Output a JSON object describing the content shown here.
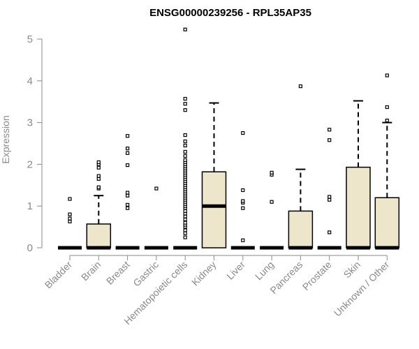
{
  "chart_data": {
    "type": "box",
    "title": "ENSG00000239256 - RPL35AP35",
    "xlabel": "",
    "ylabel": "Expression",
    "ylim": [
      0,
      5.2
    ],
    "yticks": [
      0,
      1,
      2,
      3,
      4,
      5
    ],
    "grid": false,
    "legend": "none",
    "box_fill": "#ede6cb",
    "box_stroke": "#000000",
    "categories": [
      "Bladder",
      "Brain",
      "Breast",
      "Gastric",
      "Hematopoietic cells",
      "Kidney",
      "Liver",
      "Lung",
      "Pancreas",
      "Prostate",
      "Skin",
      "Unknown / Other"
    ],
    "boxes": [
      {
        "category": "Bladder",
        "q1": 0,
        "median": 0,
        "q3": 0,
        "whisker_low": 0,
        "whisker_high": 0,
        "outliers": [
          0.63,
          0.7,
          0.8,
          1.17
        ]
      },
      {
        "category": "Brain",
        "q1": 0,
        "median": 0,
        "q3": 0.57,
        "whisker_low": 0,
        "whisker_high": 1.25,
        "outliers": [
          1.42,
          1.45,
          1.65,
          1.72,
          1.92,
          2.0,
          2.05
        ]
      },
      {
        "category": "Breast",
        "q1": 0,
        "median": 0,
        "q3": 0,
        "whisker_low": 0,
        "whisker_high": 0,
        "outliers": [
          0.95,
          1.03,
          1.25,
          1.32,
          1.98,
          2.27,
          2.38,
          2.68
        ]
      },
      {
        "category": "Gastric",
        "q1": 0,
        "median": 0,
        "q3": 0,
        "whisker_low": 0,
        "whisker_high": 0,
        "outliers": [
          1.42
        ]
      },
      {
        "category": "Hematopoietic cells",
        "q1": 0,
        "median": 0,
        "q3": 0,
        "whisker_low": 0,
        "whisker_high": 0,
        "outliers": [
          0.25,
          0.35,
          0.42,
          0.5,
          0.55,
          0.6,
          0.68,
          0.75,
          0.82,
          0.88,
          0.95,
          1.0,
          1.05,
          1.1,
          1.15,
          1.2,
          1.25,
          1.3,
          1.35,
          1.4,
          1.45,
          1.5,
          1.55,
          1.6,
          1.65,
          1.7,
          1.75,
          1.8,
          1.85,
          1.9,
          1.95,
          2.0,
          2.05,
          2.1,
          2.2,
          2.3,
          2.45,
          2.55,
          2.7,
          3.3,
          3.45,
          3.57,
          5.23
        ]
      },
      {
        "category": "Kidney",
        "q1": 0,
        "median": 1.0,
        "q3": 1.82,
        "whisker_low": 0,
        "whisker_high": 3.47,
        "outliers": []
      },
      {
        "category": "Liver",
        "q1": 0,
        "median": 0,
        "q3": 0,
        "whisker_low": 0,
        "whisker_high": 0,
        "outliers": [
          0.18,
          0.95,
          1.08,
          1.12,
          1.38,
          2.75
        ]
      },
      {
        "category": "Lung",
        "q1": 0,
        "median": 0,
        "q3": 0,
        "whisker_low": 0,
        "whisker_high": 0,
        "outliers": [
          1.1,
          1.75,
          1.8
        ]
      },
      {
        "category": "Pancreas",
        "q1": 0,
        "median": 0,
        "q3": 0.88,
        "whisker_low": 0,
        "whisker_high": 1.88,
        "outliers": [
          3.87
        ]
      },
      {
        "category": "Prostate",
        "q1": 0,
        "median": 0,
        "q3": 0,
        "whisker_low": 0,
        "whisker_high": 0,
        "outliers": [
          0.37,
          1.15,
          1.22,
          2.58,
          2.83
        ]
      },
      {
        "category": "Skin",
        "q1": 0,
        "median": 0,
        "q3": 1.93,
        "whisker_low": 0,
        "whisker_high": 3.52,
        "outliers": []
      },
      {
        "category": "Unknown / Other",
        "q1": 0,
        "median": 0,
        "q3": 1.2,
        "whisker_low": 0,
        "whisker_high": 3.0,
        "outliers": [
          3.05,
          3.37,
          4.13
        ]
      }
    ]
  }
}
